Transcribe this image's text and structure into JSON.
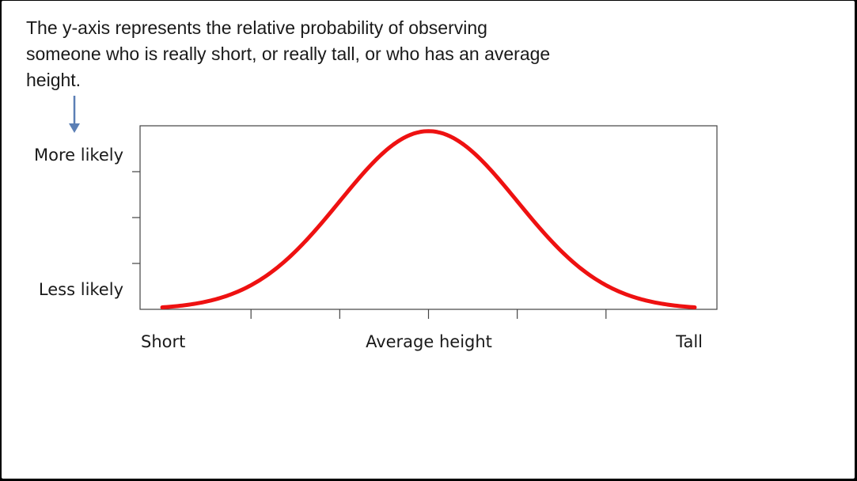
{
  "slide": {
    "caption": "The y-axis represents the relative probability of observing someone who is really short, or really tall, or who has an average height."
  },
  "chart_data": {
    "type": "line",
    "title": "",
    "xlabel": "",
    "ylabel": "",
    "x_tick_labels": [
      "Short",
      "Average height",
      "Tall"
    ],
    "y_tick_labels": [
      "More likely",
      "Less likely"
    ],
    "xlim": [
      -3.25,
      3.25
    ],
    "ylim": [
      0,
      1.03
    ],
    "series": [
      {
        "curve": "normal (bell-shaped)",
        "mean": 0,
        "sd": 1,
        "x_range": [
          -3,
          3
        ],
        "peak": 1,
        "color": "#ee1111"
      }
    ],
    "grid": false,
    "legend": "none",
    "annotation": {
      "arrow_color": "#5b7fb5",
      "arrow_direction": "down",
      "points_to": "y-axis"
    }
  }
}
